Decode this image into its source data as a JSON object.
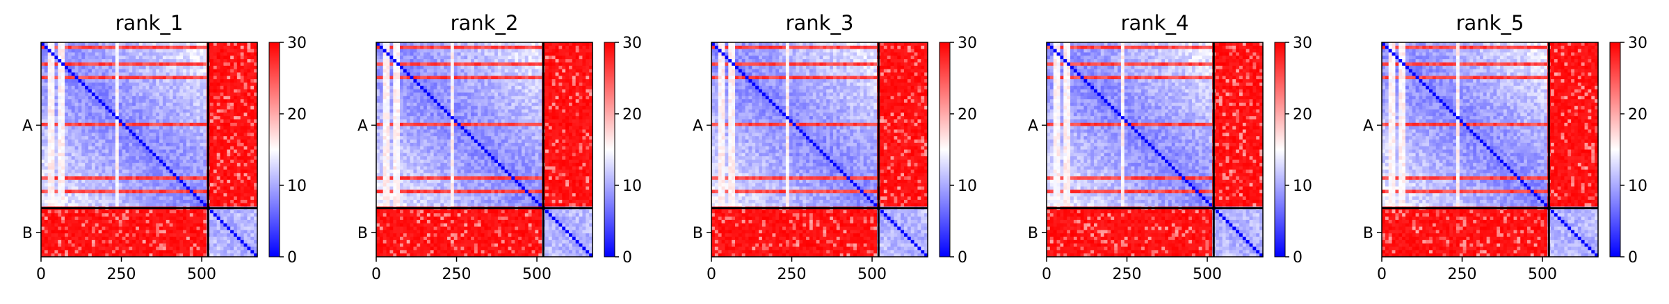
{
  "figure": {
    "colormap": {
      "low": "#0000ff",
      "mid": "#ffffff",
      "high": "#ff0000"
    },
    "chain_boundary_color": "#000000"
  },
  "chart_data": [
    {
      "type": "heatmap",
      "title": "rank_1",
      "x_range": [
        0,
        673
      ],
      "x_ticks": [
        "0",
        "250",
        "500"
      ],
      "x_tick_values": [
        0,
        250,
        500
      ],
      "y_ticks": [
        "A",
        "B"
      ],
      "chains": [
        {
          "name": "A",
          "start": 0,
          "end": 520
        },
        {
          "name": "B",
          "start": 520,
          "end": 673
        }
      ],
      "colorbar": {
        "vmin": 0,
        "vmax": 30,
        "ticks": [
          "0",
          "10",
          "20",
          "30"
        ],
        "tick_values": [
          0,
          10,
          20,
          30
        ]
      },
      "values_summary": {
        "diagonal": 0,
        "chain_A_intra_typical": 6,
        "chain_B_intra_typical": 8,
        "inter_chain_typical": 28,
        "high_error_rows_A": [
          12,
          72,
          112,
          255,
          428,
          470
        ],
        "low_error_columns_A": [
          30,
          40,
          55,
          70,
          240
        ]
      }
    },
    {
      "type": "heatmap",
      "title": "rank_2",
      "x_range": [
        0,
        673
      ],
      "x_ticks": [
        "0",
        "250",
        "500"
      ],
      "x_tick_values": [
        0,
        250,
        500
      ],
      "y_ticks": [
        "A",
        "B"
      ],
      "chains": [
        {
          "name": "A",
          "start": 0,
          "end": 520
        },
        {
          "name": "B",
          "start": 520,
          "end": 673
        }
      ],
      "colorbar": {
        "vmin": 0,
        "vmax": 30,
        "ticks": [
          "0",
          "10",
          "20",
          "30"
        ],
        "tick_values": [
          0,
          10,
          20,
          30
        ]
      },
      "values_summary": {
        "diagonal": 0,
        "chain_A_intra_typical": 6,
        "chain_B_intra_typical": 8,
        "inter_chain_typical": 28,
        "high_error_rows_A": [
          12,
          72,
          112,
          255,
          428,
          470
        ],
        "low_error_columns_A": [
          30,
          40,
          55,
          70,
          240
        ]
      }
    },
    {
      "type": "heatmap",
      "title": "rank_3",
      "x_range": [
        0,
        673
      ],
      "x_ticks": [
        "0",
        "250",
        "500"
      ],
      "x_tick_values": [
        0,
        250,
        500
      ],
      "y_ticks": [
        "A",
        "B"
      ],
      "chains": [
        {
          "name": "A",
          "start": 0,
          "end": 520
        },
        {
          "name": "B",
          "start": 520,
          "end": 673
        }
      ],
      "colorbar": {
        "vmin": 0,
        "vmax": 30,
        "ticks": [
          "0",
          "10",
          "20",
          "30"
        ],
        "tick_values": [
          0,
          10,
          20,
          30
        ]
      },
      "values_summary": {
        "diagonal": 0,
        "chain_A_intra_typical": 6,
        "chain_B_intra_typical": 8,
        "inter_chain_typical": 28,
        "high_error_rows_A": [
          12,
          72,
          112,
          255,
          428,
          470
        ],
        "low_error_columns_A": [
          30,
          40,
          55,
          70,
          240
        ]
      }
    },
    {
      "type": "heatmap",
      "title": "rank_4",
      "x_range": [
        0,
        673
      ],
      "x_ticks": [
        "0",
        "250",
        "500"
      ],
      "x_tick_values": [
        0,
        250,
        500
      ],
      "y_ticks": [
        "A",
        "B"
      ],
      "chains": [
        {
          "name": "A",
          "start": 0,
          "end": 520
        },
        {
          "name": "B",
          "start": 520,
          "end": 673
        }
      ],
      "colorbar": {
        "vmin": 0,
        "vmax": 30,
        "ticks": [
          "0",
          "10",
          "20",
          "30"
        ],
        "tick_values": [
          0,
          10,
          20,
          30
        ]
      },
      "values_summary": {
        "diagonal": 0,
        "chain_A_intra_typical": 6,
        "chain_B_intra_typical": 8,
        "inter_chain_typical": 28,
        "high_error_rows_A": [
          12,
          72,
          112,
          255,
          428,
          470
        ],
        "low_error_columns_A": [
          30,
          40,
          55,
          70,
          240
        ]
      }
    },
    {
      "type": "heatmap",
      "title": "rank_5",
      "x_range": [
        0,
        673
      ],
      "x_ticks": [
        "0",
        "250",
        "500"
      ],
      "x_tick_values": [
        0,
        250,
        500
      ],
      "y_ticks": [
        "A",
        "B"
      ],
      "chains": [
        {
          "name": "A",
          "start": 0,
          "end": 520
        },
        {
          "name": "B",
          "start": 520,
          "end": 673
        }
      ],
      "colorbar": {
        "vmin": 0,
        "vmax": 30,
        "ticks": [
          "0",
          "10",
          "20",
          "30"
        ],
        "tick_values": [
          0,
          10,
          20,
          30
        ]
      },
      "values_summary": {
        "diagonal": 0,
        "chain_A_intra_typical": 6,
        "chain_B_intra_typical": 8,
        "inter_chain_typical": 28,
        "high_error_rows_A": [
          12,
          72,
          112,
          255,
          428,
          470
        ],
        "low_error_columns_A": [
          30,
          40,
          55,
          70,
          240
        ]
      }
    }
  ]
}
